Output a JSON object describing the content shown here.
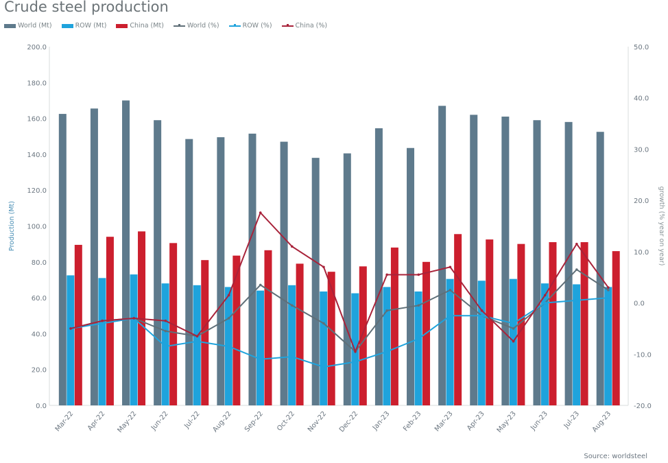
{
  "chart_data": {
    "type": "bar",
    "title": "Crude steel production",
    "categories": [
      "Mar-22",
      "Apr-22",
      "May-22",
      "Jun-22",
      "Jul-22",
      "Aug-22",
      "Sep-22",
      "Oct-22",
      "Nov-22",
      "Dec-22",
      "Jan-23",
      "Feb-23",
      "Mar-23",
      "Apr-23",
      "May-23",
      "Jun-23",
      "Jul-23",
      "Aug-23"
    ],
    "ylabel": "Production (Mt)",
    "y2label": "growth (% year on year)",
    "ylim": [
      0,
      200
    ],
    "y2lim": [
      -20,
      50
    ],
    "yticks": [
      "0.0",
      "20.0",
      "40.0",
      "60.0",
      "80.0",
      "100.0",
      "120.0",
      "140.0",
      "160.0",
      "180.0",
      "200.0"
    ],
    "y2ticks": [
      "-20.0",
      "-10.0",
      "0.0",
      "10.0",
      "20.0",
      "30.0",
      "40.0",
      "50.0"
    ],
    "grid": false,
    "legend_position": "top-left",
    "series": [
      {
        "name": "World (Mt)",
        "kind": "bar",
        "axis": "left",
        "color": "#5e7a8c",
        "values": [
          162.5,
          165.5,
          170,
          159,
          148.5,
          149.5,
          151.5,
          147,
          138,
          140.5,
          154.5,
          143.5,
          167,
          162,
          161,
          159,
          158,
          152.5
        ]
      },
      {
        "name": "ROW (Mt)",
        "kind": "bar",
        "axis": "left",
        "color": "#1fa3dc",
        "values": [
          72.5,
          71,
          73,
          68,
          67,
          66,
          64,
          67,
          63.5,
          62.5,
          66,
          63.5,
          70.5,
          69.5,
          70.5,
          68,
          67.5,
          66
        ]
      },
      {
        "name": "China (Mt)",
        "kind": "bar",
        "axis": "left",
        "color": "#cc1f2e",
        "values": [
          89.5,
          94,
          97,
          90.5,
          81,
          83.5,
          86.5,
          79,
          74.5,
          77.5,
          88,
          80,
          95.5,
          92.5,
          90,
          91,
          91,
          86
        ]
      },
      {
        "name": "World (%)",
        "kind": "line",
        "axis": "right",
        "color": "#5f6f78",
        "values": [
          -5,
          -3.5,
          -3,
          -5.5,
          -6.5,
          -3,
          3.5,
          -0.5,
          -4,
          -9.5,
          -1.5,
          -0.5,
          2.5,
          -2.5,
          -5,
          0,
          6.5,
          2.5
        ]
      },
      {
        "name": "ROW (%)",
        "kind": "line",
        "axis": "right",
        "color": "#1fa3dc",
        "values": [
          -5,
          -4,
          -3,
          -8.5,
          -7.5,
          -8.5,
          -11,
          -10.5,
          -12.5,
          -11.5,
          -9.5,
          -7,
          -2.5,
          -2.5,
          -4,
          0,
          0.5,
          1
        ]
      },
      {
        "name": "China (%)",
        "kind": "line",
        "axis": "right",
        "color": "#a8233a",
        "values": [
          -5,
          -3.5,
          -3,
          -3.5,
          -6.5,
          1.5,
          17.6,
          11,
          7,
          -9.5,
          5.5,
          5.5,
          7,
          -1.5,
          -7.5,
          1.5,
          11.5,
          3
        ]
      }
    ],
    "source": "Source: worldsteel"
  }
}
